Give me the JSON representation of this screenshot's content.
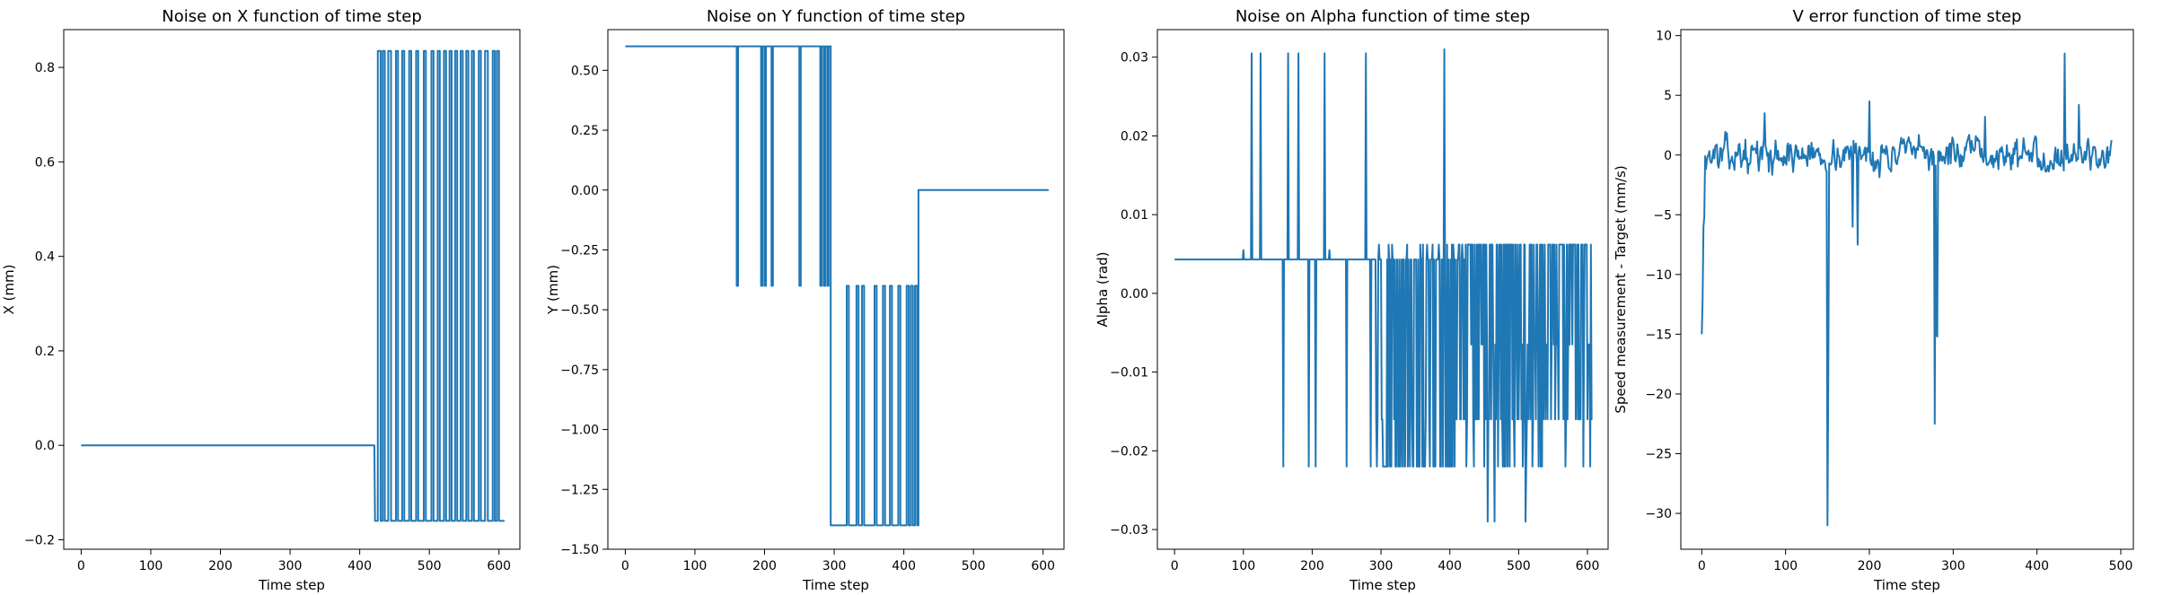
{
  "charts": [
    {
      "type": "line",
      "title": "Noise on X function of time step",
      "xlabel": "Time step",
      "ylabel": "X (mm)",
      "xlim": [
        -25,
        630
      ],
      "ylim": [
        -0.22,
        0.88
      ],
      "xticks": [
        0,
        100,
        200,
        300,
        400,
        500,
        600
      ],
      "yticks": [
        -0.2,
        0.0,
        0.2,
        0.4,
        0.6,
        0.8
      ],
      "ytick_labels": [
        "−0.2",
        "0.0",
        "0.2",
        "0.4",
        "0.6",
        "0.8"
      ],
      "color": "#1f77b4",
      "mode": "binary_toggle",
      "levels": [
        0.0,
        -0.16,
        0.835
      ],
      "switch_x": 421,
      "x_end": 608,
      "spikes": [
        [
          426,
          430
        ],
        [
          433,
          436
        ],
        [
          441,
          445
        ],
        [
          452,
          455
        ],
        [
          461,
          464
        ],
        [
          471,
          474
        ],
        [
          481,
          484
        ],
        [
          492,
          495
        ],
        [
          503,
          506
        ],
        [
          512,
          515
        ],
        [
          521,
          524
        ],
        [
          529,
          532
        ],
        [
          537,
          540
        ],
        [
          545,
          548
        ],
        [
          553,
          556
        ],
        [
          561,
          564
        ],
        [
          571,
          574
        ],
        [
          580,
          584
        ],
        [
          591,
          594
        ],
        [
          597,
          600
        ]
      ]
    },
    {
      "type": "line",
      "title": "Noise on Y function of time step",
      "xlabel": "Time step",
      "ylabel": "Y (mm)",
      "xlim": [
        -25,
        630
      ],
      "ylim": [
        -1.5,
        0.67
      ],
      "xticks": [
        0,
        100,
        200,
        300,
        400,
        500,
        600
      ],
      "yticks": [
        -1.5,
        -1.25,
        -1.0,
        -0.75,
        -0.5,
        -0.25,
        0.0,
        0.25,
        0.5
      ],
      "ytick_labels": [
        "−1.50",
        "−1.25",
        "−1.00",
        "−0.75",
        "−0.50",
        "−0.25",
        "0.00",
        "0.25",
        "0.50"
      ],
      "color": "#1f77b4",
      "mode": "segments",
      "segments": [
        {
          "x0": 0,
          "x1": 295,
          "level": 0.6,
          "spike_to": -0.4,
          "spikes": [
            [
              160,
              162
            ],
            [
              195,
              197
            ],
            [
              200,
              202
            ],
            [
              210,
              212
            ],
            [
              250,
              252
            ],
            [
              280,
              282
            ],
            [
              285,
              287
            ],
            [
              290,
              292
            ]
          ]
        },
        {
          "x0": 295,
          "x1": 421,
          "level": -1.4,
          "spike_to": -0.4,
          "spikes": [
            [
              318,
              321
            ],
            [
              332,
              335
            ],
            [
              340,
              343
            ],
            [
              358,
              361
            ],
            [
              370,
              373
            ],
            [
              380,
              383
            ],
            [
              392,
              395
            ],
            [
              404,
              407
            ],
            [
              410,
              413
            ],
            [
              416,
              419
            ]
          ]
        },
        {
          "x0": 421,
          "x1": 608,
          "level": 0.0,
          "spike_to": null,
          "spikes": []
        }
      ]
    },
    {
      "type": "line",
      "title": "Noise on Alpha function of time step",
      "xlabel": "Time step",
      "ylabel": "Alpha (rad)",
      "xlim": [
        -25,
        630
      ],
      "ylim": [
        -0.0325,
        0.0335
      ],
      "xticks": [
        0,
        100,
        200,
        300,
        400,
        500,
        600
      ],
      "yticks": [
        -0.03,
        -0.02,
        -0.01,
        0.0,
        0.01,
        0.02,
        0.03
      ],
      "ytick_labels": [
        "−0.03",
        "−0.02",
        "−0.01",
        "0.00",
        "0.01",
        "0.02",
        "0.03"
      ],
      "color": "#1f77b4",
      "mode": "noise_seeded",
      "seed": 7,
      "n": 608,
      "baseline": 0.0043,
      "upper_level": 0.0062,
      "low_level": -0.022,
      "deep_level": -0.029,
      "mid_level": -0.016,
      "alt_level": -0.0065,
      "early_spikes": [
        [
          100,
          0.0055
        ],
        [
          112,
          0.0305
        ],
        [
          125,
          0.0305
        ],
        [
          158,
          -0.022
        ],
        [
          165,
          0.0305
        ],
        [
          180,
          0.0305
        ],
        [
          195,
          -0.022
        ],
        [
          205,
          -0.022
        ],
        [
          218,
          0.0305
        ],
        [
          225,
          0.0055
        ],
        [
          250,
          -0.022
        ],
        [
          278,
          0.0305
        ],
        [
          285,
          -0.022
        ],
        [
          292,
          0.0055
        ]
      ],
      "late_spikes": [
        [
          392,
          0.031
        ],
        [
          455,
          -0.029
        ],
        [
          465,
          -0.029
        ],
        [
          510,
          -0.029
        ]
      ]
    },
    {
      "type": "line",
      "title": "V error function of time step",
      "xlabel": "Time step",
      "ylabel": "Speed measurement - Target (mm/s)",
      "xlim": [
        -25,
        515
      ],
      "ylim": [
        -33,
        10.5
      ],
      "xticks": [
        0,
        100,
        200,
        300,
        400,
        500
      ],
      "yticks": [
        -30,
        -25,
        -20,
        -15,
        -10,
        -5,
        0,
        5,
        10
      ],
      "ytick_labels": [
        "−30",
        "−25",
        "−20",
        "−15",
        "−10",
        "−5",
        "0",
        "5",
        "10"
      ],
      "color": "#1f77b4",
      "mode": "noise_seeded",
      "seed": 13,
      "n": 490,
      "spikes": [
        [
          0,
          -15.0
        ],
        [
          1,
          -12.0
        ],
        [
          2,
          -6.0
        ],
        [
          3,
          -5.2
        ],
        [
          150,
          -31.0
        ],
        [
          151,
          -18.0
        ],
        [
          180,
          -6.0
        ],
        [
          186,
          -7.5
        ],
        [
          278,
          -22.5
        ],
        [
          280,
          -15.0
        ],
        [
          281,
          -15.2
        ],
        [
          433,
          8.5
        ],
        [
          450,
          4.2
        ],
        [
          200,
          4.5
        ],
        [
          75,
          3.5
        ],
        [
          338,
          3.2
        ]
      ]
    }
  ]
}
